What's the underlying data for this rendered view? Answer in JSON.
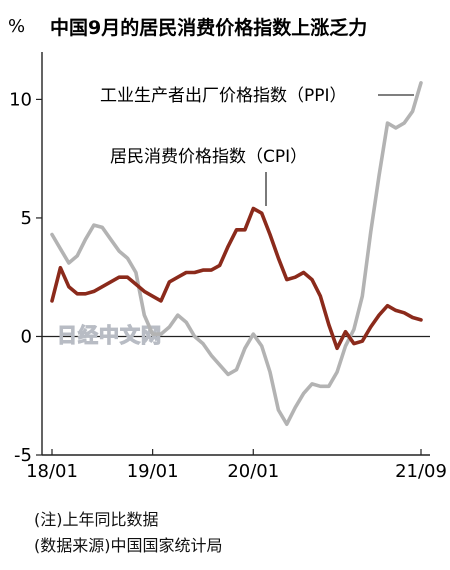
{
  "chart_data": {
    "type": "line",
    "title": "中国9月的居民消费价格指数上涨乏力",
    "unit": "%",
    "xlabel": "",
    "ylabel": "",
    "ylim": [
      -5,
      12
    ],
    "yticks": [
      10,
      5,
      0,
      -5
    ],
    "x_start": "2018-01",
    "x_end": "2021-09",
    "xticks": [
      {
        "label": "18/01",
        "month": 0
      },
      {
        "label": "19/01",
        "month": 12
      },
      {
        "label": "20/01",
        "month": 24
      },
      {
        "label": "21/09",
        "month": 44
      }
    ],
    "grid": false,
    "zero_line": true,
    "series": [
      {
        "name": "居民消费价格指数（CPI）",
        "color": "#8b2a1b",
        "values": [
          1.5,
          2.9,
          2.1,
          1.8,
          1.8,
          1.9,
          2.1,
          2.3,
          2.5,
          2.5,
          2.2,
          1.9,
          1.7,
          1.5,
          2.3,
          2.5,
          2.7,
          2.7,
          2.8,
          2.8,
          3.0,
          3.8,
          4.5,
          4.5,
          5.4,
          5.2,
          4.3,
          3.3,
          2.4,
          2.5,
          2.7,
          2.4,
          1.7,
          0.5,
          -0.5,
          0.2,
          -0.3,
          -0.2,
          0.4,
          0.9,
          1.3,
          1.1,
          1.0,
          0.8,
          0.7
        ]
      },
      {
        "name": "工业生产者出厂价格指数（PPI）",
        "color": "#b3b3b3",
        "values": [
          4.3,
          3.7,
          3.1,
          3.4,
          4.1,
          4.7,
          4.6,
          4.1,
          3.6,
          3.3,
          2.7,
          0.9,
          0.1,
          0.1,
          0.4,
          0.9,
          0.6,
          0.0,
          -0.3,
          -0.8,
          -1.2,
          -1.6,
          -1.4,
          -0.5,
          0.1,
          -0.4,
          -1.5,
          -3.1,
          -3.7,
          -3.0,
          -2.4,
          -2.0,
          -2.1,
          -2.1,
          -1.5,
          -0.4,
          0.3,
          1.7,
          4.4,
          6.8,
          9.0,
          8.8,
          9.0,
          9.5,
          10.7
        ]
      }
    ],
    "annotations": {
      "ppi_label": "工业生产者出厂价格指数（PPI）",
      "cpi_label": "居民消费价格指数（CPI）"
    }
  },
  "watermark": "日经中文网",
  "notes": [
    "(注)上年同比数据",
    "(数据来源)中国国家统计局"
  ]
}
